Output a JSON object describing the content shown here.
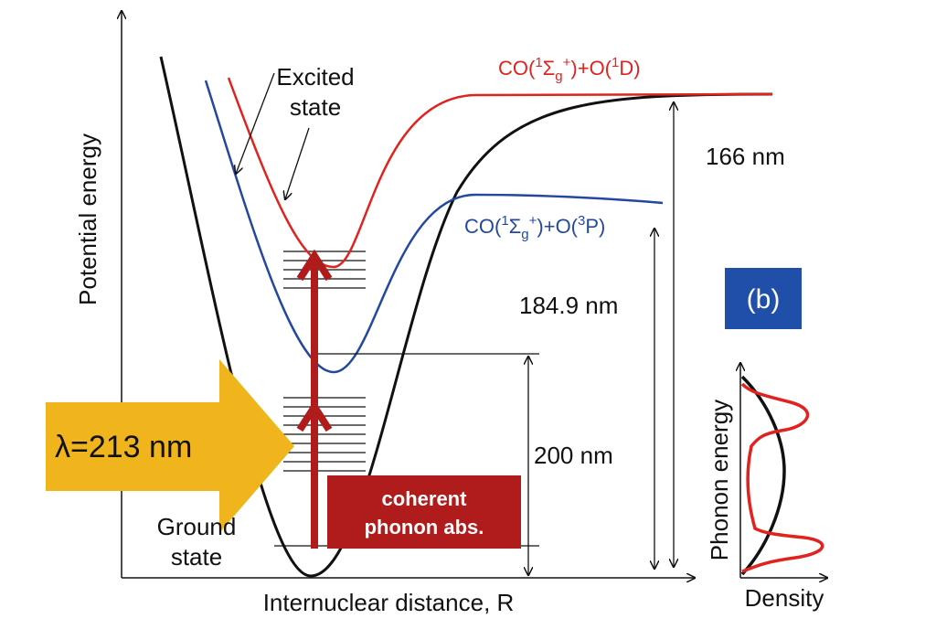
{
  "axes": {
    "y_label": "Potential energy",
    "x_label": "Internuclear distance, R"
  },
  "labels": {
    "excited_state": [
      "Excited",
      "state"
    ],
    "ground_state": [
      "Ground",
      "state"
    ],
    "red_asymptote": [
      "CO(",
      "1",
      "Σ",
      "g",
      "+",
      ")+O(",
      "1",
      "D)"
    ],
    "blue_asymptote": [
      "CO(",
      "1",
      "Σ",
      "g",
      "+",
      ")+O(",
      "3",
      "P)"
    ],
    "wavelength_166": "166 nm",
    "wavelength_184": "184.9 nm",
    "wavelength_200": "200 nm",
    "excitation": "λ=213 nm",
    "panel": "(b)",
    "phonon_box": [
      "coherent",
      "phonon  abs."
    ]
  },
  "inset": {
    "y_label": "Phonon energy",
    "x_label": "Density"
  }
}
